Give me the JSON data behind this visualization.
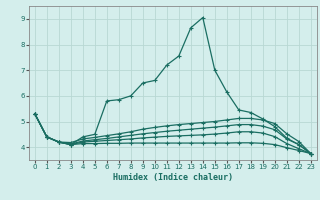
{
  "xlabel": "Humidex (Indice chaleur)",
  "bg_color": "#d4eeec",
  "grid_color": "#b8d8d4",
  "line_color": "#1a6e62",
  "xlim_min": -0.5,
  "xlim_max": 23.5,
  "ylim_min": 3.5,
  "ylim_max": 9.5,
  "yticks": [
    4,
    5,
    6,
    7,
    8,
    9
  ],
  "xticks": [
    0,
    1,
    2,
    3,
    4,
    5,
    6,
    7,
    8,
    9,
    10,
    11,
    12,
    13,
    14,
    15,
    16,
    17,
    18,
    19,
    20,
    21,
    22,
    23
  ],
  "lines": [
    [
      5.3,
      4.4,
      4.2,
      4.1,
      4.4,
      4.5,
      5.8,
      5.85,
      6.0,
      6.5,
      6.6,
      7.2,
      7.55,
      8.65,
      9.05,
      7.0,
      6.15,
      5.45,
      5.35,
      5.1,
      4.8,
      4.35,
      4.1,
      3.75
    ],
    [
      5.3,
      4.4,
      4.2,
      4.18,
      4.32,
      4.38,
      4.45,
      4.52,
      4.6,
      4.7,
      4.77,
      4.83,
      4.88,
      4.92,
      4.96,
      5.0,
      5.06,
      5.12,
      5.12,
      5.06,
      4.92,
      4.52,
      4.22,
      3.75
    ],
    [
      5.3,
      4.4,
      4.2,
      4.12,
      4.24,
      4.29,
      4.34,
      4.4,
      4.46,
      4.52,
      4.57,
      4.62,
      4.66,
      4.7,
      4.74,
      4.78,
      4.83,
      4.88,
      4.88,
      4.82,
      4.68,
      4.32,
      4.1,
      3.75
    ],
    [
      5.3,
      4.4,
      4.2,
      4.1,
      4.2,
      4.23,
      4.26,
      4.29,
      4.32,
      4.36,
      4.39,
      4.42,
      4.44,
      4.46,
      4.48,
      4.51,
      4.55,
      4.6,
      4.6,
      4.55,
      4.41,
      4.14,
      3.94,
      3.75
    ],
    [
      5.3,
      4.4,
      4.2,
      4.1,
      4.14,
      4.14,
      4.15,
      4.15,
      4.16,
      4.16,
      4.16,
      4.16,
      4.16,
      4.16,
      4.16,
      4.16,
      4.16,
      4.17,
      4.17,
      4.15,
      4.1,
      3.98,
      3.87,
      3.75
    ]
  ]
}
